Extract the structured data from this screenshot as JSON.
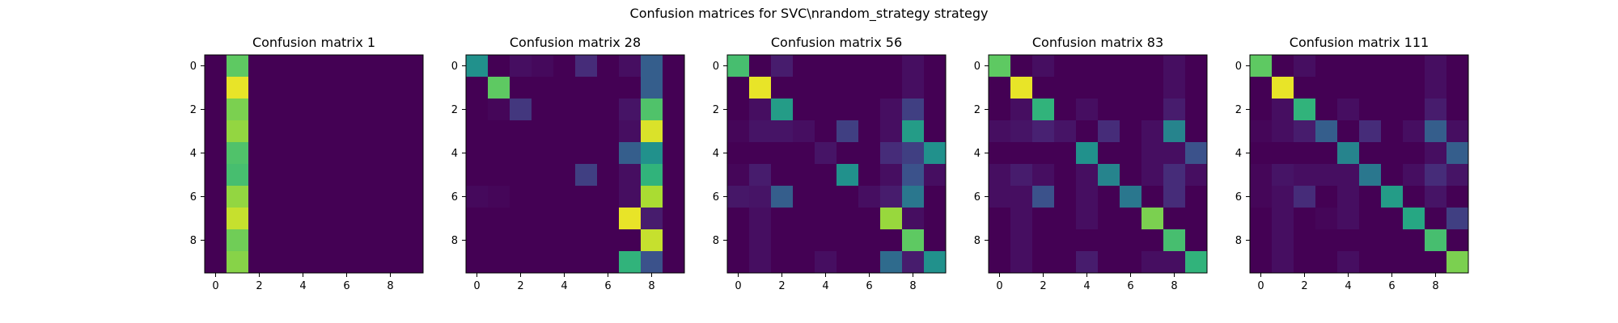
{
  "figure": {
    "suptitle": "Confusion matrices for SVC\\nrandom_strategy strategy"
  },
  "chart_data": [
    {
      "type": "heatmap",
      "title": "Confusion matrix 1",
      "xticks": [
        "0",
        "2",
        "4",
        "6",
        "8"
      ],
      "yticks": [
        "0",
        "2",
        "4",
        "6",
        "8"
      ],
      "colormap": "viridis",
      "values": [
        [
          0.0,
          0.75,
          0.0,
          0.0,
          0.0,
          0.0,
          0.0,
          0.0,
          0.0,
          0.0
        ],
        [
          0.0,
          0.97,
          0.0,
          0.0,
          0.0,
          0.0,
          0.0,
          0.0,
          0.0,
          0.0
        ],
        [
          0.0,
          0.8,
          0.0,
          0.0,
          0.0,
          0.0,
          0.0,
          0.0,
          0.0,
          0.0
        ],
        [
          0.0,
          0.84,
          0.0,
          0.0,
          0.0,
          0.0,
          0.0,
          0.0,
          0.0,
          0.0
        ],
        [
          0.0,
          0.72,
          0.0,
          0.0,
          0.0,
          0.0,
          0.0,
          0.0,
          0.0,
          0.0
        ],
        [
          0.0,
          0.7,
          0.0,
          0.0,
          0.0,
          0.0,
          0.0,
          0.0,
          0.0,
          0.0
        ],
        [
          0.0,
          0.84,
          0.0,
          0.0,
          0.0,
          0.0,
          0.0,
          0.0,
          0.0,
          0.0
        ],
        [
          0.0,
          0.92,
          0.0,
          0.0,
          0.0,
          0.0,
          0.0,
          0.0,
          0.0,
          0.0
        ],
        [
          0.0,
          0.78,
          0.0,
          0.0,
          0.0,
          0.0,
          0.0,
          0.0,
          0.0,
          0.0
        ],
        [
          0.0,
          0.82,
          0.0,
          0.0,
          0.0,
          0.0,
          0.0,
          0.0,
          0.0,
          0.0
        ]
      ]
    },
    {
      "type": "heatmap",
      "title": "Confusion matrix 28",
      "xticks": [
        "0",
        "2",
        "4",
        "6",
        "8"
      ],
      "yticks": [
        "0",
        "2",
        "4",
        "6",
        "8"
      ],
      "colormap": "viridis",
      "values": [
        [
          0.5,
          0.0,
          0.05,
          0.03,
          0.0,
          0.15,
          0.0,
          0.05,
          0.3,
          0.0
        ],
        [
          0.0,
          0.75,
          0.0,
          0.0,
          0.0,
          0.0,
          0.0,
          0.0,
          0.3,
          0.0
        ],
        [
          0.0,
          0.02,
          0.18,
          0.0,
          0.0,
          0.0,
          0.0,
          0.07,
          0.72,
          0.0
        ],
        [
          0.0,
          0.0,
          0.0,
          0.0,
          0.0,
          0.0,
          0.0,
          0.05,
          0.95,
          0.0
        ],
        [
          0.0,
          0.0,
          0.0,
          0.0,
          0.0,
          0.0,
          0.0,
          0.3,
          0.5,
          0.0
        ],
        [
          0.0,
          0.0,
          0.0,
          0.0,
          0.0,
          0.2,
          0.0,
          0.05,
          0.65,
          0.0
        ],
        [
          0.03,
          0.02,
          0.0,
          0.0,
          0.0,
          0.0,
          0.0,
          0.05,
          0.88,
          0.0
        ],
        [
          0.0,
          0.0,
          0.0,
          0.0,
          0.0,
          0.0,
          0.0,
          0.97,
          0.1,
          0.0
        ],
        [
          0.0,
          0.0,
          0.0,
          0.0,
          0.0,
          0.0,
          0.0,
          0.0,
          0.92,
          0.0
        ],
        [
          0.0,
          0.0,
          0.0,
          0.0,
          0.0,
          0.0,
          0.0,
          0.65,
          0.25,
          0.0
        ]
      ]
    },
    {
      "type": "heatmap",
      "title": "Confusion matrix 56",
      "xticks": [
        "0",
        "2",
        "4",
        "6",
        "8"
      ],
      "yticks": [
        "0",
        "2",
        "4",
        "6",
        "8"
      ],
      "colormap": "viridis",
      "values": [
        [
          0.7,
          0.0,
          0.1,
          0.0,
          0.0,
          0.0,
          0.0,
          0.0,
          0.05,
          0.0
        ],
        [
          0.0,
          0.97,
          0.0,
          0.0,
          0.0,
          0.0,
          0.0,
          0.0,
          0.05,
          0.0
        ],
        [
          0.0,
          0.05,
          0.55,
          0.0,
          0.0,
          0.0,
          0.0,
          0.05,
          0.2,
          0.0
        ],
        [
          0.02,
          0.07,
          0.07,
          0.05,
          0.0,
          0.2,
          0.0,
          0.05,
          0.55,
          0.0
        ],
        [
          0.0,
          0.0,
          0.0,
          0.0,
          0.07,
          0.0,
          0.0,
          0.15,
          0.2,
          0.5
        ],
        [
          0.02,
          0.1,
          0.0,
          0.0,
          0.0,
          0.5,
          0.0,
          0.05,
          0.25,
          0.05
        ],
        [
          0.08,
          0.07,
          0.3,
          0.0,
          0.0,
          0.0,
          0.05,
          0.1,
          0.4,
          0.0
        ],
        [
          0.0,
          0.05,
          0.0,
          0.0,
          0.0,
          0.0,
          0.0,
          0.85,
          0.05,
          0.0
        ],
        [
          0.0,
          0.05,
          0.0,
          0.0,
          0.0,
          0.0,
          0.0,
          0.0,
          0.75,
          0.0
        ],
        [
          0.0,
          0.05,
          0.0,
          0.0,
          0.05,
          0.0,
          0.0,
          0.35,
          0.1,
          0.5
        ]
      ]
    },
    {
      "type": "heatmap",
      "title": "Confusion matrix 83",
      "xticks": [
        "0",
        "2",
        "4",
        "6",
        "8"
      ],
      "yticks": [
        "0",
        "2",
        "4",
        "6",
        "8"
      ],
      "colormap": "viridis",
      "values": [
        [
          0.75,
          0.0,
          0.05,
          0.0,
          0.0,
          0.0,
          0.0,
          0.0,
          0.05,
          0.0
        ],
        [
          0.0,
          0.97,
          0.0,
          0.0,
          0.0,
          0.0,
          0.0,
          0.0,
          0.05,
          0.0
        ],
        [
          0.0,
          0.05,
          0.65,
          0.0,
          0.05,
          0.0,
          0.0,
          0.0,
          0.1,
          0.0
        ],
        [
          0.05,
          0.07,
          0.12,
          0.07,
          0.0,
          0.15,
          0.0,
          0.05,
          0.45,
          0.0
        ],
        [
          0.0,
          0.0,
          0.0,
          0.0,
          0.5,
          0.0,
          0.0,
          0.05,
          0.05,
          0.25
        ],
        [
          0.05,
          0.1,
          0.05,
          0.0,
          0.05,
          0.45,
          0.0,
          0.05,
          0.15,
          0.05
        ],
        [
          0.05,
          0.05,
          0.25,
          0.0,
          0.05,
          0.0,
          0.4,
          0.0,
          0.15,
          0.0
        ],
        [
          0.0,
          0.05,
          0.0,
          0.0,
          0.05,
          0.0,
          0.0,
          0.8,
          0.0,
          0.0
        ],
        [
          0.0,
          0.05,
          0.0,
          0.0,
          0.0,
          0.0,
          0.0,
          0.0,
          0.7,
          0.0
        ],
        [
          0.0,
          0.05,
          0.0,
          0.0,
          0.1,
          0.0,
          0.0,
          0.05,
          0.05,
          0.65
        ]
      ]
    },
    {
      "type": "heatmap",
      "title": "Confusion matrix 111",
      "xticks": [
        "0",
        "2",
        "4",
        "6",
        "8"
      ],
      "yticks": [
        "0",
        "2",
        "4",
        "6",
        "8"
      ],
      "colormap": "viridis",
      "values": [
        [
          0.75,
          0.0,
          0.05,
          0.0,
          0.0,
          0.0,
          0.0,
          0.0,
          0.05,
          0.0
        ],
        [
          0.0,
          0.97,
          0.0,
          0.0,
          0.0,
          0.0,
          0.0,
          0.0,
          0.05,
          0.0
        ],
        [
          0.0,
          0.05,
          0.65,
          0.0,
          0.05,
          0.0,
          0.0,
          0.0,
          0.1,
          0.0
        ],
        [
          0.02,
          0.05,
          0.1,
          0.3,
          0.0,
          0.15,
          0.0,
          0.05,
          0.3,
          0.05
        ],
        [
          0.0,
          0.0,
          0.0,
          0.0,
          0.45,
          0.0,
          0.0,
          0.0,
          0.05,
          0.3
        ],
        [
          0.02,
          0.07,
          0.05,
          0.05,
          0.05,
          0.4,
          0.0,
          0.05,
          0.15,
          0.07
        ],
        [
          0.02,
          0.05,
          0.15,
          0.0,
          0.05,
          0.0,
          0.55,
          0.0,
          0.07,
          0.0
        ],
        [
          0.0,
          0.05,
          0.0,
          0.02,
          0.05,
          0.0,
          0.0,
          0.6,
          0.0,
          0.2
        ],
        [
          0.0,
          0.05,
          0.0,
          0.0,
          0.0,
          0.0,
          0.0,
          0.0,
          0.7,
          0.0
        ],
        [
          0.0,
          0.05,
          0.0,
          0.0,
          0.05,
          0.0,
          0.0,
          0.0,
          0.0,
          0.8
        ]
      ]
    }
  ]
}
